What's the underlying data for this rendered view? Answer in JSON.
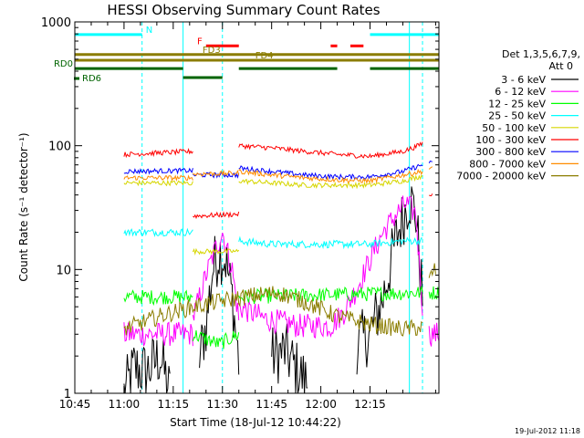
{
  "chart_data": {
    "type": "line",
    "title": "HESSI Observing Summary Count Rates",
    "xlabel": "Start Time (18-Jul-12 10:44:22)",
    "ylabel": "Count Rate (s⁻¹ detector⁻¹)",
    "yscale": "log",
    "xlim": [
      0,
      111
    ],
    "ylim": [
      1,
      1000
    ],
    "x_unit": "minutes after 10:45",
    "xticks": [
      {
        "x": 0,
        "label": "10:45"
      },
      {
        "x": 15,
        "label": "11:00"
      },
      {
        "x": 30,
        "label": "11:15"
      },
      {
        "x": 45,
        "label": "11:30"
      },
      {
        "x": 60,
        "label": "11:45"
      },
      {
        "x": 75,
        "label": "12:00"
      },
      {
        "x": 90,
        "label": "12:15"
      }
    ],
    "yticks": [
      {
        "y": 1,
        "label": "1"
      },
      {
        "y": 10,
        "label": "10"
      },
      {
        "y": 100,
        "label": "100"
      },
      {
        "y": 1000,
        "label": "1000"
      }
    ],
    "legend": {
      "position": "right",
      "header": [
        "Det 1,3,5,6,7,9,",
        "Att 0"
      ],
      "entries": [
        {
          "label": "3 - 6 keV",
          "color": "#000000"
        },
        {
          "label": "6 - 12 keV",
          "color": "#ff00ff"
        },
        {
          "label": "12 - 25 keV",
          "color": "#00ff00"
        },
        {
          "label": "25 - 50 keV",
          "color": "#00ffff"
        },
        {
          "label": "50 - 100 keV",
          "color": "#d6d600"
        },
        {
          "label": "100 - 300 keV",
          "color": "#ff0000"
        },
        {
          "label": "300 - 800 keV",
          "color": "#0000ff"
        },
        {
          "label": "800 - 7000 keV",
          "color": "#ff8c00"
        },
        {
          "label": "7000 - 20000 keV",
          "color": "#8b7d00"
        }
      ]
    },
    "series": [
      {
        "name": "3 - 6 keV",
        "color": "#000000",
        "segments": [
          [
            [
              15,
              1.0
            ],
            [
              18,
              1.6
            ],
            [
              22,
              1.5
            ],
            [
              26,
              2.0
            ],
            [
              29,
              1.0
            ]
          ],
          [
            [
              38,
              2.0
            ],
            [
              40,
              3.5
            ],
            [
              42,
              10
            ],
            [
              44,
              14
            ],
            [
              46,
              12
            ],
            [
              48,
              6
            ],
            [
              50,
              1.8
            ]
          ],
          [
            [
              52,
              1.0
            ]
          ],
          [
            [
              60,
              2.0
            ],
            [
              64,
              2.2
            ],
            [
              68,
              1.5
            ],
            [
              71,
              1.2
            ]
          ],
          [
            [
              86,
              2.5
            ],
            [
              90,
              3.0
            ],
            [
              94,
              6.0
            ],
            [
              98,
              18
            ],
            [
              102,
              38
            ],
            [
              104,
              28
            ],
            [
              106,
              6
            ]
          ]
        ],
        "noise": 0.25
      },
      {
        "name": "6 - 12 keV",
        "color": "#ff00ff",
        "segments": [
          [
            [
              15,
              3.0
            ],
            [
              36,
              3.0
            ]
          ],
          [
            [
              36,
              4.0
            ],
            [
              40,
              9.0
            ],
            [
              43,
              15
            ],
            [
              45,
              20
            ],
            [
              48,
              10
            ],
            [
              50,
              4.0
            ]
          ],
          [
            [
              50,
              5.0
            ],
            [
              58,
              4.0
            ],
            [
              68,
              3.5
            ],
            [
              78,
              3.5
            ],
            [
              82,
              4.5
            ],
            [
              86,
              7.0
            ],
            [
              90,
              12
            ],
            [
              94,
              20
            ],
            [
              98,
              28
            ],
            [
              101,
              34
            ],
            [
              104,
              28
            ],
            [
              106,
              5.0
            ]
          ],
          [
            [
              108,
              3.0
            ],
            [
              111,
              3.0
            ]
          ]
        ],
        "noise": 0.1
      },
      {
        "name": "12 - 25 keV",
        "color": "#00ff00",
        "segments": [
          [
            [
              15,
              6.0
            ],
            [
              36,
              6.0
            ]
          ],
          [
            [
              36,
              3.0
            ],
            [
              44,
              2.5
            ],
            [
              50,
              3.0
            ]
          ],
          [
            [
              50,
              6.0
            ],
            [
              106,
              6.5
            ]
          ],
          [
            [
              108,
              6.5
            ],
            [
              111,
              6.5
            ]
          ]
        ],
        "noise": 0.06
      },
      {
        "name": "25 - 50 keV",
        "color": "#00ffff",
        "segments": [
          [
            [
              15,
              20
            ],
            [
              36,
              20
            ]
          ],
          [
            [
              50,
              17
            ],
            [
              60,
              16
            ],
            [
              70,
              16
            ],
            [
              80,
              16
            ],
            [
              90,
              16
            ],
            [
              100,
              17
            ],
            [
              106,
              17
            ]
          ]
        ],
        "noise": 0.03
      },
      {
        "name": "50 - 100 keV",
        "color": "#d6d600",
        "segments": [
          [
            [
              15,
              50
            ],
            [
              36,
              50
            ]
          ],
          [
            [
              36,
              14
            ],
            [
              50,
              14
            ]
          ],
          [
            [
              50,
              52
            ],
            [
              60,
              50
            ],
            [
              70,
              48
            ],
            [
              80,
              48
            ],
            [
              90,
              48
            ],
            [
              100,
              52
            ],
            [
              106,
              57
            ]
          ]
        ],
        "noise": 0.02
      },
      {
        "name": "100 - 300 keV",
        "color": "#ff0000",
        "segments": [
          [
            [
              15,
              85
            ],
            [
              36,
              90
            ]
          ],
          [
            [
              36,
              27
            ],
            [
              50,
              28
            ]
          ],
          [
            [
              50,
              100
            ],
            [
              60,
              96
            ],
            [
              70,
              90
            ],
            [
              80,
              85
            ],
            [
              90,
              82
            ],
            [
              100,
              90
            ],
            [
              104,
              98
            ],
            [
              106,
              105
            ]
          ],
          [
            [
              108,
              40
            ],
            [
              109,
              40
            ]
          ]
        ],
        "noise": 0.02
      },
      {
        "name": "300 - 800 keV",
        "color": "#0000ff",
        "segments": [
          [
            [
              15,
              62
            ],
            [
              36,
              63
            ]
          ],
          [
            [
              36,
              58
            ],
            [
              50,
              58
            ]
          ],
          [
            [
              50,
              66
            ],
            [
              60,
              62
            ],
            [
              70,
              58
            ],
            [
              80,
              56
            ],
            [
              90,
              56
            ],
            [
              100,
              62
            ],
            [
              106,
              70
            ]
          ],
          [
            [
              108,
              72
            ],
            [
              109,
              72
            ]
          ]
        ],
        "noise": 0.02
      },
      {
        "name": "800 - 7000 keV",
        "color": "#ff8c00",
        "segments": [
          [
            [
              15,
              55
            ],
            [
              36,
              55
            ]
          ],
          [
            [
              36,
              59
            ],
            [
              50,
              60
            ]
          ],
          [
            [
              50,
              62
            ],
            [
              60,
              58
            ],
            [
              70,
              55
            ],
            [
              80,
              53
            ],
            [
              90,
              52
            ],
            [
              100,
              58
            ],
            [
              106,
              62
            ]
          ],
          [
            [
              108,
              65
            ],
            [
              109,
              65
            ]
          ]
        ],
        "noise": 0.02
      },
      {
        "name": "7000 - 20000 keV",
        "color": "#8b7d00",
        "segments": [
          [
            [
              15,
              3.3
            ],
            [
              26,
              4.2
            ],
            [
              36,
              5.0
            ],
            [
              45,
              5.6
            ],
            [
              55,
              6.2
            ],
            [
              62,
              6.5
            ],
            [
              70,
              5.5
            ],
            [
              80,
              4.2
            ],
            [
              90,
              3.6
            ],
            [
              100,
              3.3
            ],
            [
              106,
              3.4
            ]
          ],
          [
            [
              108,
              8.0
            ],
            [
              109,
              9.5
            ],
            [
              110,
              10
            ]
          ]
        ],
        "noise": 0.07
      }
    ],
    "flags": [
      {
        "label": "N",
        "color": "#00ffff",
        "segments": [
          [
            0,
            20.5
          ],
          [
            90,
            111
          ]
        ],
        "y": 790
      },
      {
        "label": "F",
        "color": "#ff0000",
        "segments": [
          [
            40,
            50
          ],
          [
            78,
            80
          ],
          [
            84,
            88
          ]
        ],
        "y": 640
      },
      {
        "label": "FD3",
        "color": "#8b7d00",
        "segments": [
          [
            0,
            111
          ]
        ],
        "y": 545
      },
      {
        "label": "FD4",
        "color": "#8b7d00",
        "segments": [
          [
            0,
            111
          ]
        ],
        "y": 490
      },
      {
        "label": "RD0",
        "color": "#006400",
        "segments": [
          [
            0,
            33
          ],
          [
            50,
            80
          ],
          [
            90,
            111
          ]
        ],
        "y": 420
      },
      {
        "label": "RD6",
        "color": "#006400",
        "segments": [
          [
            33,
            45
          ]
        ],
        "y": 355
      }
    ],
    "vertical_markers": [
      {
        "x": 0,
        "color": "#00ffff",
        "style": "solid"
      },
      {
        "x": 20.5,
        "color": "#00ffff",
        "style": "dashed"
      },
      {
        "x": 33,
        "color": "#00ffff",
        "style": "solid"
      },
      {
        "x": 45,
        "color": "#00ffff",
        "style": "dashed"
      },
      {
        "x": 102,
        "color": "#00ffff",
        "style": "solid"
      },
      {
        "x": 106,
        "color": "#00ffff",
        "style": "dashed"
      }
    ],
    "corner_timestamp": "19-Jul-2012 11:18"
  }
}
